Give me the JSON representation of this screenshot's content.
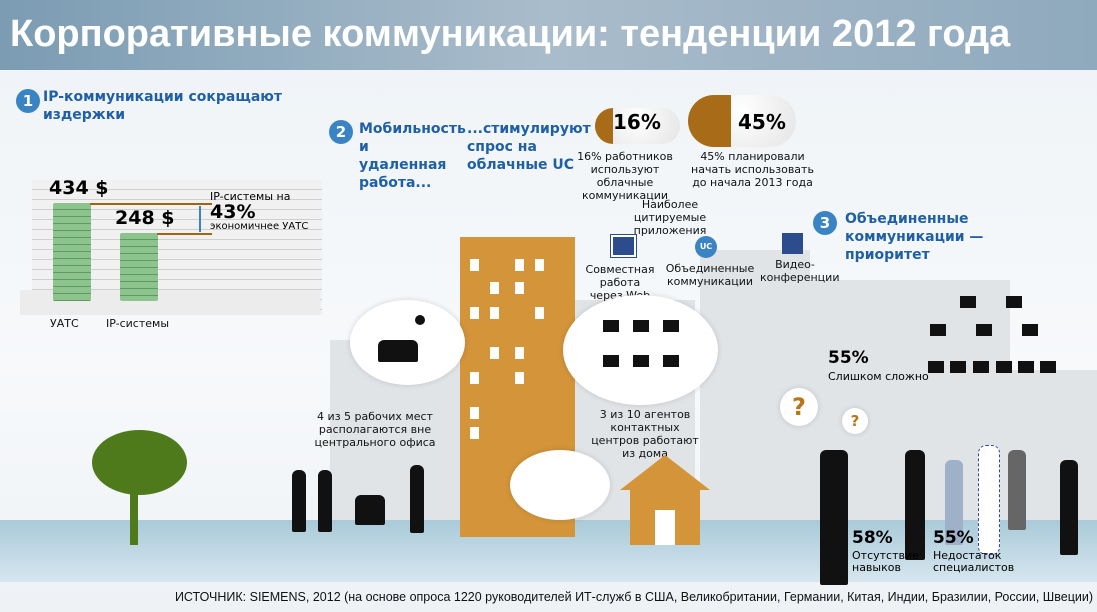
{
  "title": "Корпоративные коммуникации: тенденции 2012 года",
  "section1": {
    "number": "1",
    "heading": "IP-коммуникации сокращают издержки",
    "chart_data": {
      "type": "bar",
      "categories": [
        "УАТС",
        "IP-системы"
      ],
      "values": [
        434,
        248
      ],
      "value_labels": [
        "434 $",
        "248 $"
      ]
    },
    "note_top": "IP-системы на",
    "note_pct": "43%",
    "note_bottom": "экономичнее УАТС"
  },
  "section2": {
    "number": "2",
    "heading_a": "Мобильность и удаленная работа...",
    "heading_b": "...стимулируют спрос на облачные UC",
    "stat1": {
      "value": "16%",
      "text": "16% работников используют облачные коммуникации"
    },
    "stat2": {
      "value": "45%",
      "text": "45% планировали начать использовать до начала 2013 года"
    },
    "apps_title": "Наиболее цитируемые приложения",
    "apps": [
      {
        "icon": "web-collaboration-icon",
        "label": "Совместная работа через Web"
      },
      {
        "icon": "uc-icon",
        "label": "Объединенные коммуникации",
        "badge": "UC"
      },
      {
        "icon": "video-conference-icon",
        "label": "Видео-конференции"
      }
    ],
    "workplaces": "4 из 5 рабочих мест располагаются вне центрального офиса",
    "agents": "3 из 10 агентов контактных центров работают из дома"
  },
  "section3": {
    "number": "3",
    "heading": "Объединенные коммуникации — приоритет",
    "stat_complex": {
      "value": "55%",
      "label": "Слишком сложно"
    },
    "stat_skills": {
      "value": "58%",
      "label": "Отсутствие навыков"
    },
    "stat_staff": {
      "value": "55%",
      "label": "Недостаток специалистов"
    },
    "question_mark": "?"
  },
  "source": "ИСТОЧНИК: SIEMENS, 2012 (на основе опроса 1220 руководителей ИТ-служб в США, Великобритании, Германии, Китая, Индии, Бразилии, России, Швеции)",
  "colors": {
    "accent": "#1f5fa6",
    "building": "#d4953a",
    "title_bar": "#8fa9bd"
  }
}
